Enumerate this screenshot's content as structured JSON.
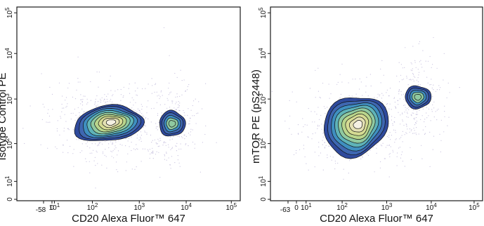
{
  "chart_data": [
    {
      "type": "contour",
      "ylabel": "Isotype Control PE",
      "xlabel": "CD20 Alexa Fluor™ 647",
      "x_scale": "biexponential",
      "y_scale": "biexponential",
      "x_ticks": [
        {
          "label": "-58",
          "value": -58
        },
        {
          "label": "0",
          "value": 0
        },
        {
          "label": "10",
          "sup": "1",
          "value": 10
        },
        {
          "label": "10",
          "sup": "2",
          "value": 100
        },
        {
          "label": "10",
          "sup": "3",
          "value": 1000
        },
        {
          "label": "10",
          "sup": "4",
          "value": 10000
        },
        {
          "label": "10",
          "sup": "5",
          "value": 100000
        }
      ],
      "y_ticks": [
        {
          "label": "0",
          "value": 0
        },
        {
          "label": "10",
          "sup": "1",
          "value": 10
        },
        {
          "label": "10",
          "sup": "2",
          "value": 100
        },
        {
          "label": "10",
          "sup": "3",
          "value": 1000
        },
        {
          "label": "10",
          "sup": "4",
          "value": 10000
        },
        {
          "label": "10",
          "sup": "5",
          "value": 100000
        }
      ],
      "populations": [
        {
          "x": 220,
          "y": 280,
          "level": "major"
        },
        {
          "x": 5000,
          "y": 280,
          "level": "minor"
        }
      ]
    },
    {
      "type": "contour",
      "ylabel": "mTOR PE (pS2448)",
      "xlabel": "CD20 Alexa Fluor™ 647",
      "x_scale": "biexponential",
      "y_scale": "biexponential",
      "x_ticks": [
        {
          "label": "-63",
          "value": -63
        },
        {
          "label": "0",
          "value": 0
        },
        {
          "label": "10",
          "sup": "1",
          "value": 10
        },
        {
          "label": "10",
          "sup": "2",
          "value": 100
        },
        {
          "label": "10",
          "sup": "3",
          "value": 1000
        },
        {
          "label": "10",
          "sup": "4",
          "value": 10000
        },
        {
          "label": "10",
          "sup": "5",
          "value": 100000
        }
      ],
      "y_ticks": [
        {
          "label": "0",
          "value": 0
        },
        {
          "label": "10",
          "sup": "1",
          "value": 10
        },
        {
          "label": "10",
          "sup": "2",
          "value": 100
        },
        {
          "label": "10",
          "sup": "3",
          "value": 1000
        },
        {
          "label": "10",
          "sup": "4",
          "value": 10000
        },
        {
          "label": "10",
          "sup": "5",
          "value": 100000
        }
      ],
      "populations": [
        {
          "x": 200,
          "y": 250,
          "level": "major"
        },
        {
          "x": 5000,
          "y": 1100,
          "level": "minor"
        }
      ]
    }
  ],
  "palette": [
    "#2f4a9c",
    "#3e67b1",
    "#3f8fc0",
    "#5fb3b8",
    "#8fc9a0",
    "#b9d58c",
    "#d5db93",
    "#e3e0b3",
    "#f4f0e2"
  ],
  "scatter_color": "#9a8fc4"
}
